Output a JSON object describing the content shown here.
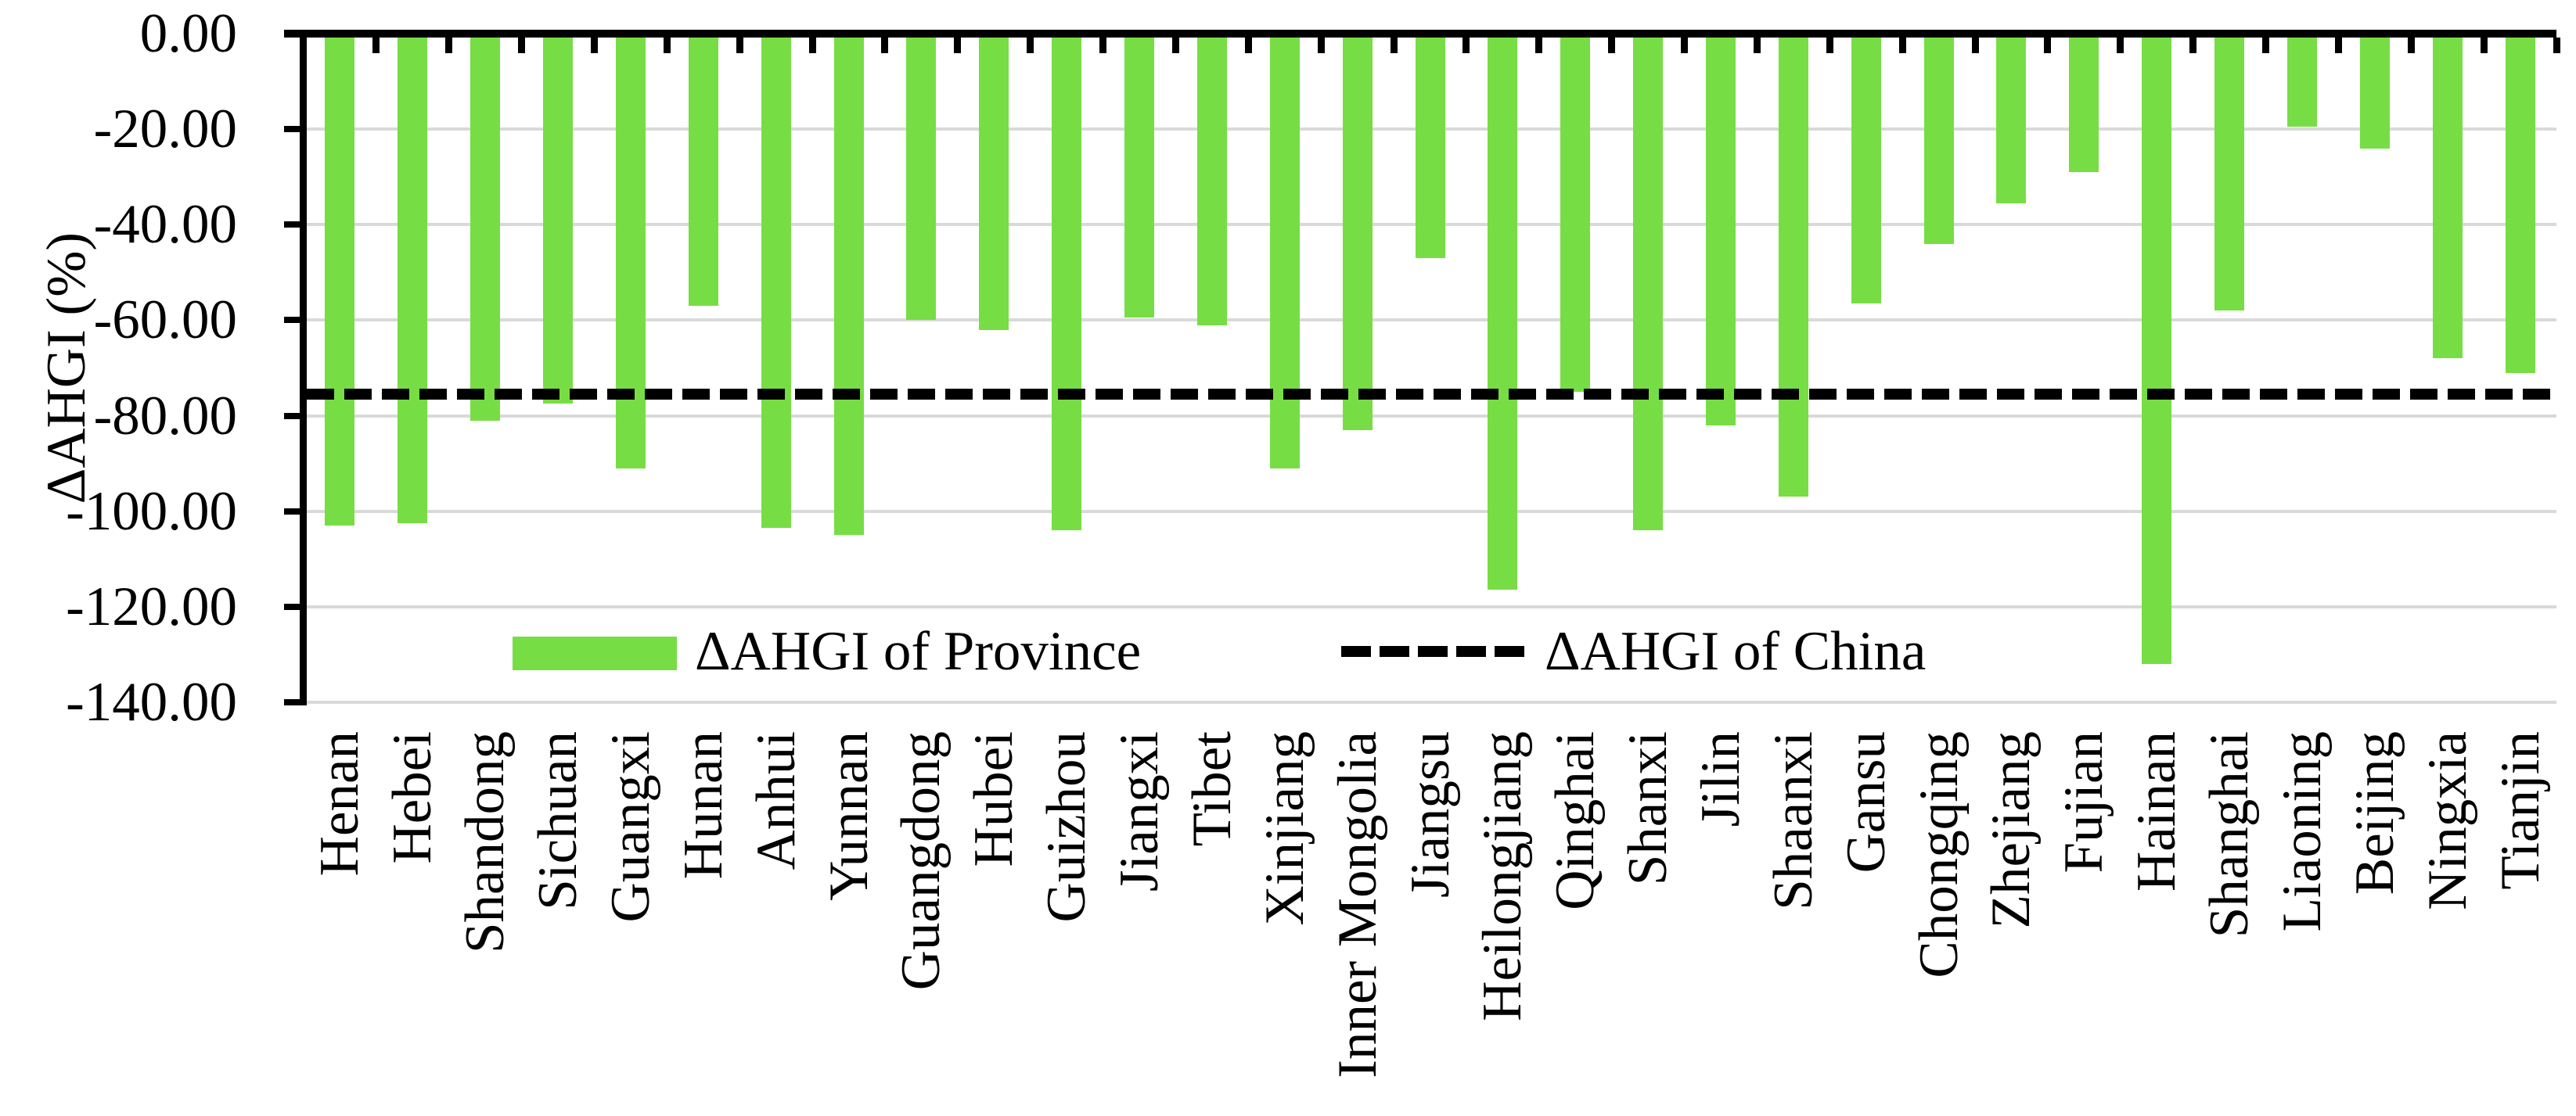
{
  "chart_data": {
    "type": "bar",
    "title": "",
    "xlabel": "",
    "ylabel": "ΔAHGI (%)",
    "categories": [
      "Henan",
      "Hebei",
      "Shandong",
      "Sichuan",
      "Guangxi",
      "Hunan",
      "Anhui",
      "Yunnan",
      "Guangdong",
      "Hubei",
      "Guizhou",
      "Jiangxi",
      "Tibet",
      "Xinjiang",
      "Inner Mongolia",
      "Jiangsu",
      "Heilongjiang",
      "Qinghai",
      "Shanxi",
      "Jilin",
      "Shaanxi",
      "Gansu",
      "Chongqing",
      "Zhejiang",
      "Fujian",
      "Hainan",
      "Shanghai",
      "Liaoning",
      "Beijing",
      "Ningxia",
      "Tianjin"
    ],
    "series": [
      {
        "name": "ΔAHGI of Province",
        "type": "bar",
        "values": [
          -103,
          -102.5,
          -81,
          -77.5,
          -91,
          -57,
          -103.5,
          -105,
          -60,
          -62,
          -104,
          -59.5,
          -61,
          -91,
          -83,
          -47,
          -116.5,
          -75,
          -104,
          -82,
          -97,
          -56.5,
          -44,
          -35.5,
          -29,
          -132,
          -58,
          -19.5,
          -24,
          -68,
          -71
        ]
      },
      {
        "name": "ΔAHGI of China",
        "type": "dashed-line",
        "value": -75.5
      }
    ],
    "ylim": [
      -140,
      0
    ],
    "ytick_step": 20,
    "ytick_labels": [
      "0.00",
      "-20.00",
      "-40.00",
      "-60.00",
      "-80.00",
      "-100.00",
      "-120.00",
      "-140.00"
    ],
    "grid": true,
    "legend_position": "inside-bottom",
    "x_tick_marks": "category-boundaries",
    "x_label_rotation_deg": 90
  },
  "colors": {
    "bar": "#77DD44",
    "china_line": "#000000",
    "axis": "#000000",
    "gridline": "#D9D9D9",
    "background": "#FFFFFF",
    "text": "#000000"
  }
}
